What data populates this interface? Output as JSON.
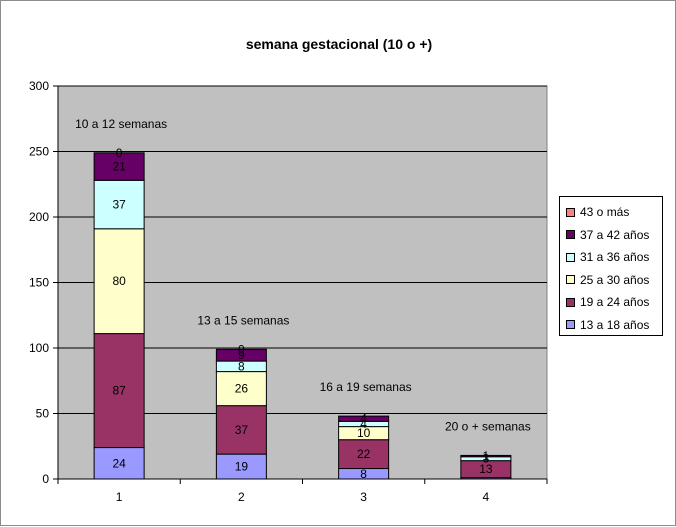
{
  "chart_data": {
    "type": "bar",
    "stacked": true,
    "title": "semana gestacional (10 o +)",
    "xlabel": "",
    "ylabel": "",
    "ylim": [
      0,
      300
    ],
    "yticks": [
      0,
      50,
      100,
      150,
      200,
      250,
      300
    ],
    "categories": [
      "1",
      "2",
      "3",
      "4"
    ],
    "group_labels": [
      "10 a 12 semanas",
      "13 a 15 semanas",
      "16 a 19 semanas",
      "20 o + semanas"
    ],
    "grid": true,
    "legend_position": "right",
    "plot_background": "#c0c0c0",
    "series": [
      {
        "name": "13 a 18 años",
        "color": "#9999ff",
        "values": [
          24,
          19,
          8,
          1
        ],
        "labels": [
          "24",
          "19",
          "8",
          ""
        ]
      },
      {
        "name": "19 a 24 años",
        "color": "#993366",
        "values": [
          87,
          37,
          22,
          13
        ],
        "labels": [
          "87",
          "37",
          "22",
          "13"
        ]
      },
      {
        "name": "25 a 30 años",
        "color": "#ffffcc",
        "values": [
          80,
          26,
          10,
          0
        ],
        "labels": [
          "80",
          "26",
          "10",
          ""
        ]
      },
      {
        "name": "31 a 36 años",
        "color": "#ccffff",
        "values": [
          37,
          8,
          4,
          3
        ],
        "labels": [
          "37",
          "8",
          "4",
          "3"
        ]
      },
      {
        "name": "37 a 42 años",
        "color": "#660066",
        "values": [
          21,
          9,
          4,
          1
        ],
        "labels": [
          "21",
          "9",
          "4",
          "1"
        ]
      },
      {
        "name": "43 o más",
        "color": "#ff8080",
        "values": [
          0,
          0,
          0,
          0
        ],
        "labels": [
          "0",
          "0",
          "",
          ""
        ]
      }
    ]
  }
}
